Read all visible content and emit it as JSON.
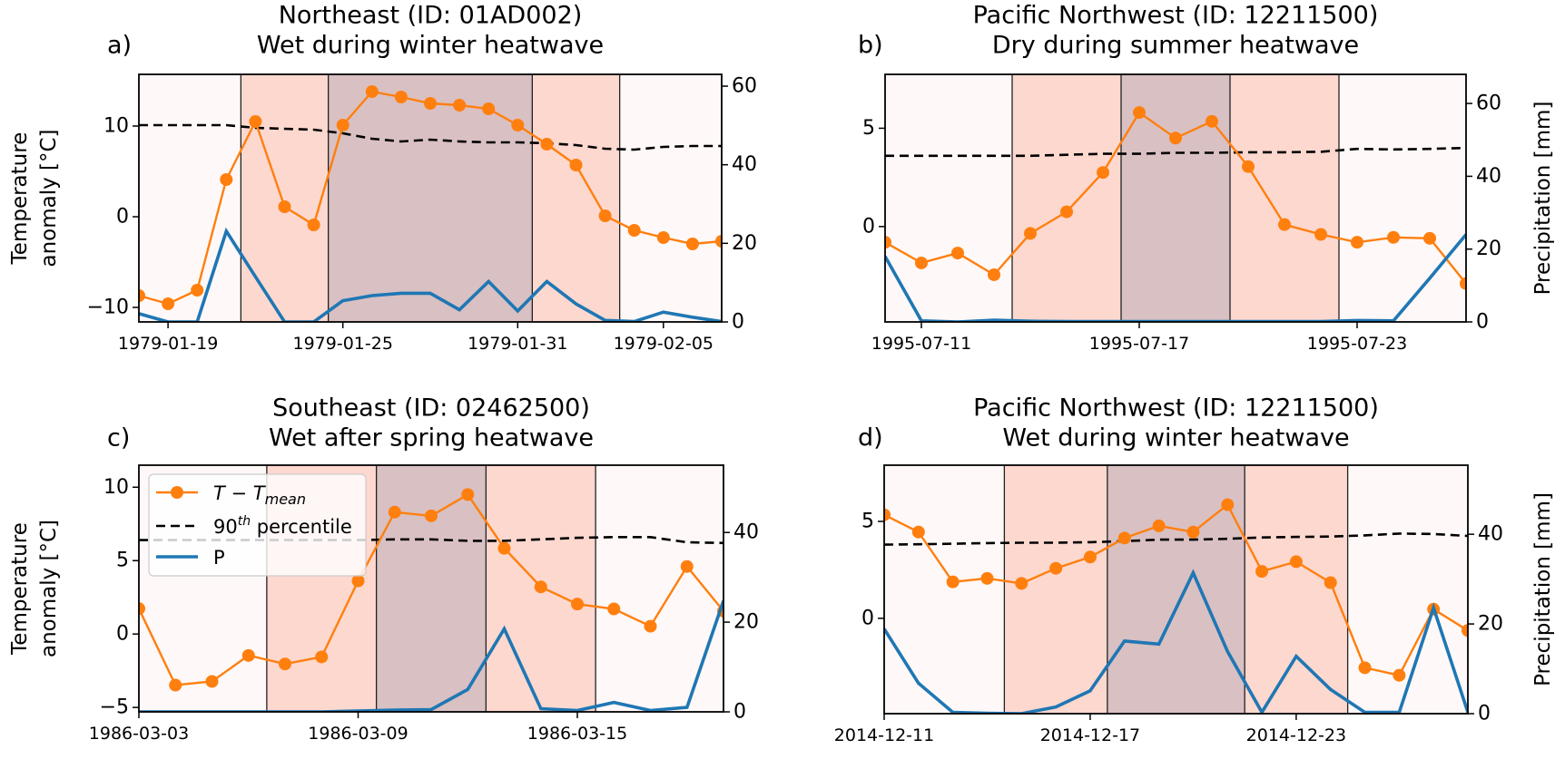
{
  "colors": {
    "temperature": "#ff7f0e",
    "percentile": "#000000",
    "precipitation": "#1f77b4",
    "outside_band": "#fff8f8",
    "pre_post_band": "#fdd8cf",
    "heatwave_band": "#d9c0c3"
  },
  "legend": {
    "placement": "upper-left of panel c",
    "temperature_label": "T − T",
    "temperature_sub": "mean",
    "percentile_label": "90",
    "percentile_sup": "th",
    "percentile_suffix": " percentile",
    "precip_label": "P"
  },
  "chart_data": [
    {
      "type": "line",
      "panel_label": "a)",
      "title_line1": "Northeast (ID: 01AD002)",
      "title_line2": "Wet during winter heatwave",
      "ylabel_left": [
        "Temperature",
        "anomaly [°C]"
      ],
      "ylabel_right": "",
      "ylim_left": [
        -11.6,
        15.7
      ],
      "ylim_right": [
        0,
        63
      ],
      "yticks_left": [
        {
          "v": -10,
          "label": "−10"
        },
        {
          "v": 0,
          "label": "0"
        },
        {
          "v": 10,
          "label": "10"
        }
      ],
      "yticks_right": [
        {
          "v": 0,
          "label": "0"
        },
        {
          "v": 20,
          "label": "20"
        },
        {
          "v": 40,
          "label": "40"
        },
        {
          "v": 60,
          "label": "60"
        }
      ],
      "xticks": [
        "1979-01-19",
        "1979-01-25",
        "1979-01-31",
        "1979-02-05"
      ],
      "x": [
        "1979-01-18",
        "1979-01-19",
        "1979-01-20",
        "1979-01-21",
        "1979-01-22",
        "1979-01-23",
        "1979-01-24",
        "1979-01-25",
        "1979-01-26",
        "1979-01-27",
        "1979-01-28",
        "1979-01-29",
        "1979-01-30",
        "1979-01-31",
        "1979-02-01",
        "1979-02-02",
        "1979-02-03",
        "1979-02-04",
        "1979-02-05",
        "1979-02-06",
        "1979-02-07"
      ],
      "series": [
        {
          "name": "T − T_mean",
          "values": [
            -8.7,
            -9.6,
            -8.1,
            4.1,
            10.5,
            1.1,
            -0.9,
            10.1,
            13.8,
            13.2,
            12.5,
            12.3,
            11.9,
            10.1,
            8.0,
            5.7,
            0.1,
            -1.5,
            -2.3,
            -3.0,
            -2.7
          ]
        },
        {
          "name": "90th percentile",
          "values": [
            10.1,
            10.1,
            10.1,
            10.1,
            9.8,
            9.7,
            9.6,
            9.2,
            8.6,
            8.3,
            8.5,
            8.3,
            8.2,
            8.2,
            8.1,
            7.9,
            7.5,
            7.4,
            7.7,
            7.8,
            7.8
          ]
        },
        {
          "name": "P",
          "axis": "right",
          "values": [
            2.1,
            0,
            0,
            23.1,
            11.5,
            0,
            0,
            5.4,
            6.7,
            7.3,
            7.3,
            3.1,
            10.3,
            2.8,
            10.3,
            4.6,
            0.4,
            0.1,
            2.5,
            1.2,
            0.1
          ]
        }
      ],
      "shading": {
        "pre": [
          "1979-01-21T12",
          "1979-01-24T12"
        ],
        "heatwave": [
          "1979-01-24T12",
          "1979-01-31T12"
        ],
        "post": [
          "1979-01-31T12",
          "1979-02-03T12"
        ]
      }
    },
    {
      "type": "line",
      "panel_label": "b)",
      "title_line1": "Pacific Northwest (ID: 12211500)",
      "title_line2": "Dry during summer heatwave",
      "ylabel_left": [],
      "ylabel_right": "Precipitation [mm]",
      "ylim_left": [
        -4.85,
        7.74
      ],
      "ylim_right": [
        0,
        68
      ],
      "yticks_left": [
        {
          "v": 0,
          "label": "0"
        },
        {
          "v": 5,
          "label": "5"
        }
      ],
      "yticks_right": [
        {
          "v": 0,
          "label": "0"
        },
        {
          "v": 20,
          "label": "20"
        },
        {
          "v": 40,
          "label": "40"
        },
        {
          "v": 60,
          "label": "60"
        }
      ],
      "xticks": [
        "1995-07-11",
        "1995-07-17",
        "1995-07-23"
      ],
      "x": [
        "1995-07-10",
        "1995-07-11",
        "1995-07-12",
        "1995-07-13",
        "1995-07-14",
        "1995-07-15",
        "1995-07-16",
        "1995-07-17",
        "1995-07-18",
        "1995-07-19",
        "1995-07-20",
        "1995-07-21",
        "1995-07-22",
        "1995-07-23",
        "1995-07-24",
        "1995-07-25",
        "1995-07-26"
      ],
      "series": [
        {
          "name": "T − T_mean",
          "values": [
            -0.8,
            -1.85,
            -1.35,
            -2.45,
            -0.35,
            0.75,
            2.75,
            5.8,
            4.5,
            5.35,
            3.05,
            0.1,
            -0.4,
            -0.8,
            -0.55,
            -0.6,
            -2.9
          ]
        },
        {
          "name": "90th percentile",
          "values": [
            3.6,
            3.6,
            3.6,
            3.6,
            3.6,
            3.65,
            3.7,
            3.7,
            3.75,
            3.75,
            3.78,
            3.78,
            3.8,
            3.95,
            3.92,
            3.95,
            4.0
          ]
        },
        {
          "name": "P",
          "axis": "right",
          "values": [
            18,
            0.3,
            0,
            0.5,
            0.2,
            0.1,
            0.1,
            0.1,
            0.1,
            0.1,
            0.1,
            0.1,
            0.1,
            0.4,
            0.3,
            12,
            24
          ]
        }
      ],
      "shading": {
        "pre": [
          "1995-07-13T12",
          "1995-07-16T12"
        ],
        "heatwave": [
          "1995-07-16T12",
          "1995-07-19T12"
        ],
        "post": [
          "1995-07-19T12",
          "1995-07-22T12"
        ]
      }
    },
    {
      "type": "line",
      "panel_label": "c)",
      "title_line1": "Southeast (ID: 02462500)",
      "title_line2": "Wet after spring heatwave",
      "ylabel_left": [
        "Temperature",
        "anomaly [°C]"
      ],
      "ylabel_right": "",
      "ylim_left": [
        -5.3,
        11.5
      ],
      "ylim_right": [
        0,
        55
      ],
      "yticks_left": [
        {
          "v": -5,
          "label": "−5"
        },
        {
          "v": 0,
          "label": "0"
        },
        {
          "v": 5,
          "label": "5"
        },
        {
          "v": 10,
          "label": "10"
        }
      ],
      "yticks_right": [
        {
          "v": 0,
          "label": "0"
        },
        {
          "v": 20,
          "label": "20"
        },
        {
          "v": 40,
          "label": "40"
        }
      ],
      "xticks": [
        "1986-03-03",
        "1986-03-09",
        "1986-03-15"
      ],
      "x": [
        "1986-03-03",
        "1986-03-04",
        "1986-03-05",
        "1986-03-06",
        "1986-03-07",
        "1986-03-08",
        "1986-03-09",
        "1986-03-10",
        "1986-03-11",
        "1986-03-12",
        "1986-03-13",
        "1986-03-14",
        "1986-03-15",
        "1986-03-16",
        "1986-03-17",
        "1986-03-18",
        "1986-03-19"
      ],
      "series": [
        {
          "name": "T − T_mean",
          "values": [
            1.73,
            -3.48,
            -3.23,
            -1.46,
            -2.04,
            -1.56,
            3.62,
            8.3,
            8.05,
            9.5,
            5.84,
            3.21,
            2.04,
            1.71,
            0.53,
            4.6,
            1.56
          ]
        },
        {
          "name": "90th percentile",
          "values": [
            6.4,
            6.4,
            6.4,
            6.4,
            6.4,
            6.4,
            6.4,
            6.45,
            6.45,
            6.35,
            6.35,
            6.45,
            6.55,
            6.6,
            6.6,
            6.25,
            6.2
          ]
        },
        {
          "name": "P",
          "axis": "right",
          "values": [
            0,
            0,
            0,
            0,
            0,
            0,
            0.2,
            0.4,
            0.5,
            5.0,
            18.5,
            0.7,
            0.3,
            2.1,
            0.3,
            1.0,
            24.8
          ]
        }
      ],
      "shading": {
        "pre": [
          "1986-03-06T12",
          "1986-03-09T12"
        ],
        "heatwave": [
          "1986-03-09T12",
          "1986-03-12T12"
        ],
        "post": [
          "1986-03-12T12",
          "1986-03-15T12"
        ]
      }
    },
    {
      "type": "line",
      "panel_label": "d)",
      "title_line1": "Pacific Northwest (ID: 12211500)",
      "title_line2": "Wet during winter heatwave",
      "ylabel_left": [],
      "ylabel_right": "Precipitation [mm]",
      "ylim_left": [
        -4.92,
        7.9
      ],
      "ylim_right": [
        0,
        55.4
      ],
      "yticks_left": [
        {
          "v": 0,
          "label": "0"
        },
        {
          "v": 5,
          "label": "5"
        }
      ],
      "yticks_right": [
        {
          "v": 0,
          "label": "0"
        },
        {
          "v": 20,
          "label": "20"
        },
        {
          "v": 40,
          "label": "40"
        }
      ],
      "xticks": [
        "2014-12-11",
        "2014-12-17",
        "2014-12-23"
      ],
      "x": [
        "2014-12-11",
        "2014-12-12",
        "2014-12-13",
        "2014-12-14",
        "2014-12-15",
        "2014-12-16",
        "2014-12-17",
        "2014-12-18",
        "2014-12-19",
        "2014-12-20",
        "2014-12-21",
        "2014-12-22",
        "2014-12-23",
        "2014-12-24",
        "2014-12-25",
        "2014-12-26",
        "2014-12-27",
        "2014-12-28"
      ],
      "series": [
        {
          "name": "T − T_mean",
          "values": [
            5.34,
            4.45,
            1.88,
            2.06,
            1.8,
            2.58,
            3.16,
            4.14,
            4.77,
            4.45,
            5.86,
            2.42,
            2.92,
            1.84,
            -2.55,
            -2.94,
            0.47,
            -0.63
          ]
        },
        {
          "name": "90th percentile",
          "values": [
            3.8,
            3.82,
            3.85,
            3.88,
            3.9,
            3.9,
            3.93,
            3.98,
            4.06,
            4.06,
            4.1,
            4.17,
            4.2,
            4.22,
            4.28,
            4.37,
            4.35,
            4.25
          ]
        },
        {
          "name": "P",
          "axis": "right",
          "values": [
            18.9,
            6.8,
            0.3,
            0.1,
            0,
            1.5,
            5.1,
            16.2,
            15.5,
            31.4,
            13.9,
            0.3,
            12.8,
            5.4,
            0.3,
            0.3,
            23.6,
            0.3
          ]
        }
      ],
      "shading": {
        "pre": [
          "2014-12-14T12",
          "2014-12-17T12"
        ],
        "heatwave": [
          "2014-12-17T12",
          "2014-12-21T12"
        ],
        "post": [
          "2014-12-21T12",
          "2014-12-24T12"
        ]
      }
    }
  ]
}
